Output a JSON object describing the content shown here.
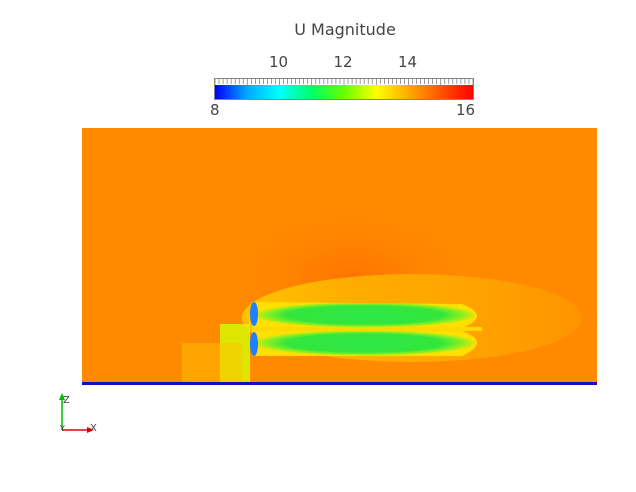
{
  "legend": {
    "title": "U Magnitude",
    "min_label": "8",
    "max_label": "16",
    "ticks": [
      {
        "value": 10,
        "label": "10"
      },
      {
        "value": 12,
        "label": "12"
      },
      {
        "value": 14,
        "label": "14"
      }
    ],
    "range": [
      8,
      16
    ],
    "colormap": [
      "#0000ff",
      "#00aaff",
      "#00ffff",
      "#00ff66",
      "#66ff00",
      "#ffff00",
      "#ffaa00",
      "#ff5500",
      "#ff0000"
    ]
  },
  "field": {
    "background_color": "#ff8a00",
    "wake_color": "#22e040",
    "ground_color": "#1010c0"
  },
  "axes": {
    "z_label": "Z",
    "x_label": "X",
    "y_label": "Y",
    "z_color": "#00bb00",
    "x_color": "#dd0000"
  }
}
